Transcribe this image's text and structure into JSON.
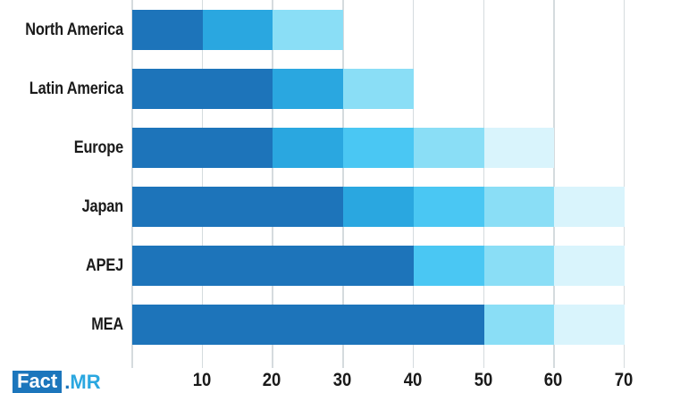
{
  "logo": {
    "box_text": "Fact",
    "dot": ".",
    "suffix": "MR"
  },
  "colors": {
    "palette": {
      "s1": "#1d74ba",
      "s2": "#2aa7e0",
      "s3": "#4ac7f3",
      "s4": "#8adef6",
      "s5": "#d9f4fc"
    },
    "gridline": "#d5dbde",
    "label_text": "#1a1a1a",
    "logo_box": "#1c76bc",
    "logo_dot": "#1b75bb",
    "logo_mr": "#2aa7e0"
  },
  "chart_data": {
    "type": "bar",
    "orientation": "horizontal",
    "stacked": true,
    "title": "",
    "xlabel": "",
    "ylabel": "",
    "xlim": [
      0,
      70
    ],
    "xticks": [
      10,
      20,
      30,
      40,
      50,
      60,
      70
    ],
    "grid": true,
    "legend": false,
    "categories": [
      "North America",
      "Latin America",
      "Europe",
      "Japan",
      "APEJ",
      "MEA"
    ],
    "totals": [
      30,
      40,
      60,
      70,
      70,
      70
    ],
    "series_note": "each bar is a stack of shaded segments, dark to pale",
    "segments": [
      [
        {
          "shade": "s1",
          "value": 10
        },
        {
          "shade": "s2",
          "value": 10
        },
        {
          "shade": "s4",
          "value": 10
        }
      ],
      [
        {
          "shade": "s1",
          "value": 20
        },
        {
          "shade": "s2",
          "value": 10
        },
        {
          "shade": "s4",
          "value": 10
        }
      ],
      [
        {
          "shade": "s1",
          "value": 20
        },
        {
          "shade": "s2",
          "value": 10
        },
        {
          "shade": "s3",
          "value": 10
        },
        {
          "shade": "s4",
          "value": 10
        },
        {
          "shade": "s5",
          "value": 10
        }
      ],
      [
        {
          "shade": "s1",
          "value": 30
        },
        {
          "shade": "s2",
          "value": 10
        },
        {
          "shade": "s3",
          "value": 10
        },
        {
          "shade": "s4",
          "value": 10
        },
        {
          "shade": "s5",
          "value": 10
        }
      ],
      [
        {
          "shade": "s1",
          "value": 40
        },
        {
          "shade": "s3",
          "value": 10
        },
        {
          "shade": "s4",
          "value": 10
        },
        {
          "shade": "s5",
          "value": 10
        }
      ],
      [
        {
          "shade": "s1",
          "value": 50
        },
        {
          "shade": "s4",
          "value": 10
        },
        {
          "shade": "s5",
          "value": 10
        }
      ]
    ]
  }
}
